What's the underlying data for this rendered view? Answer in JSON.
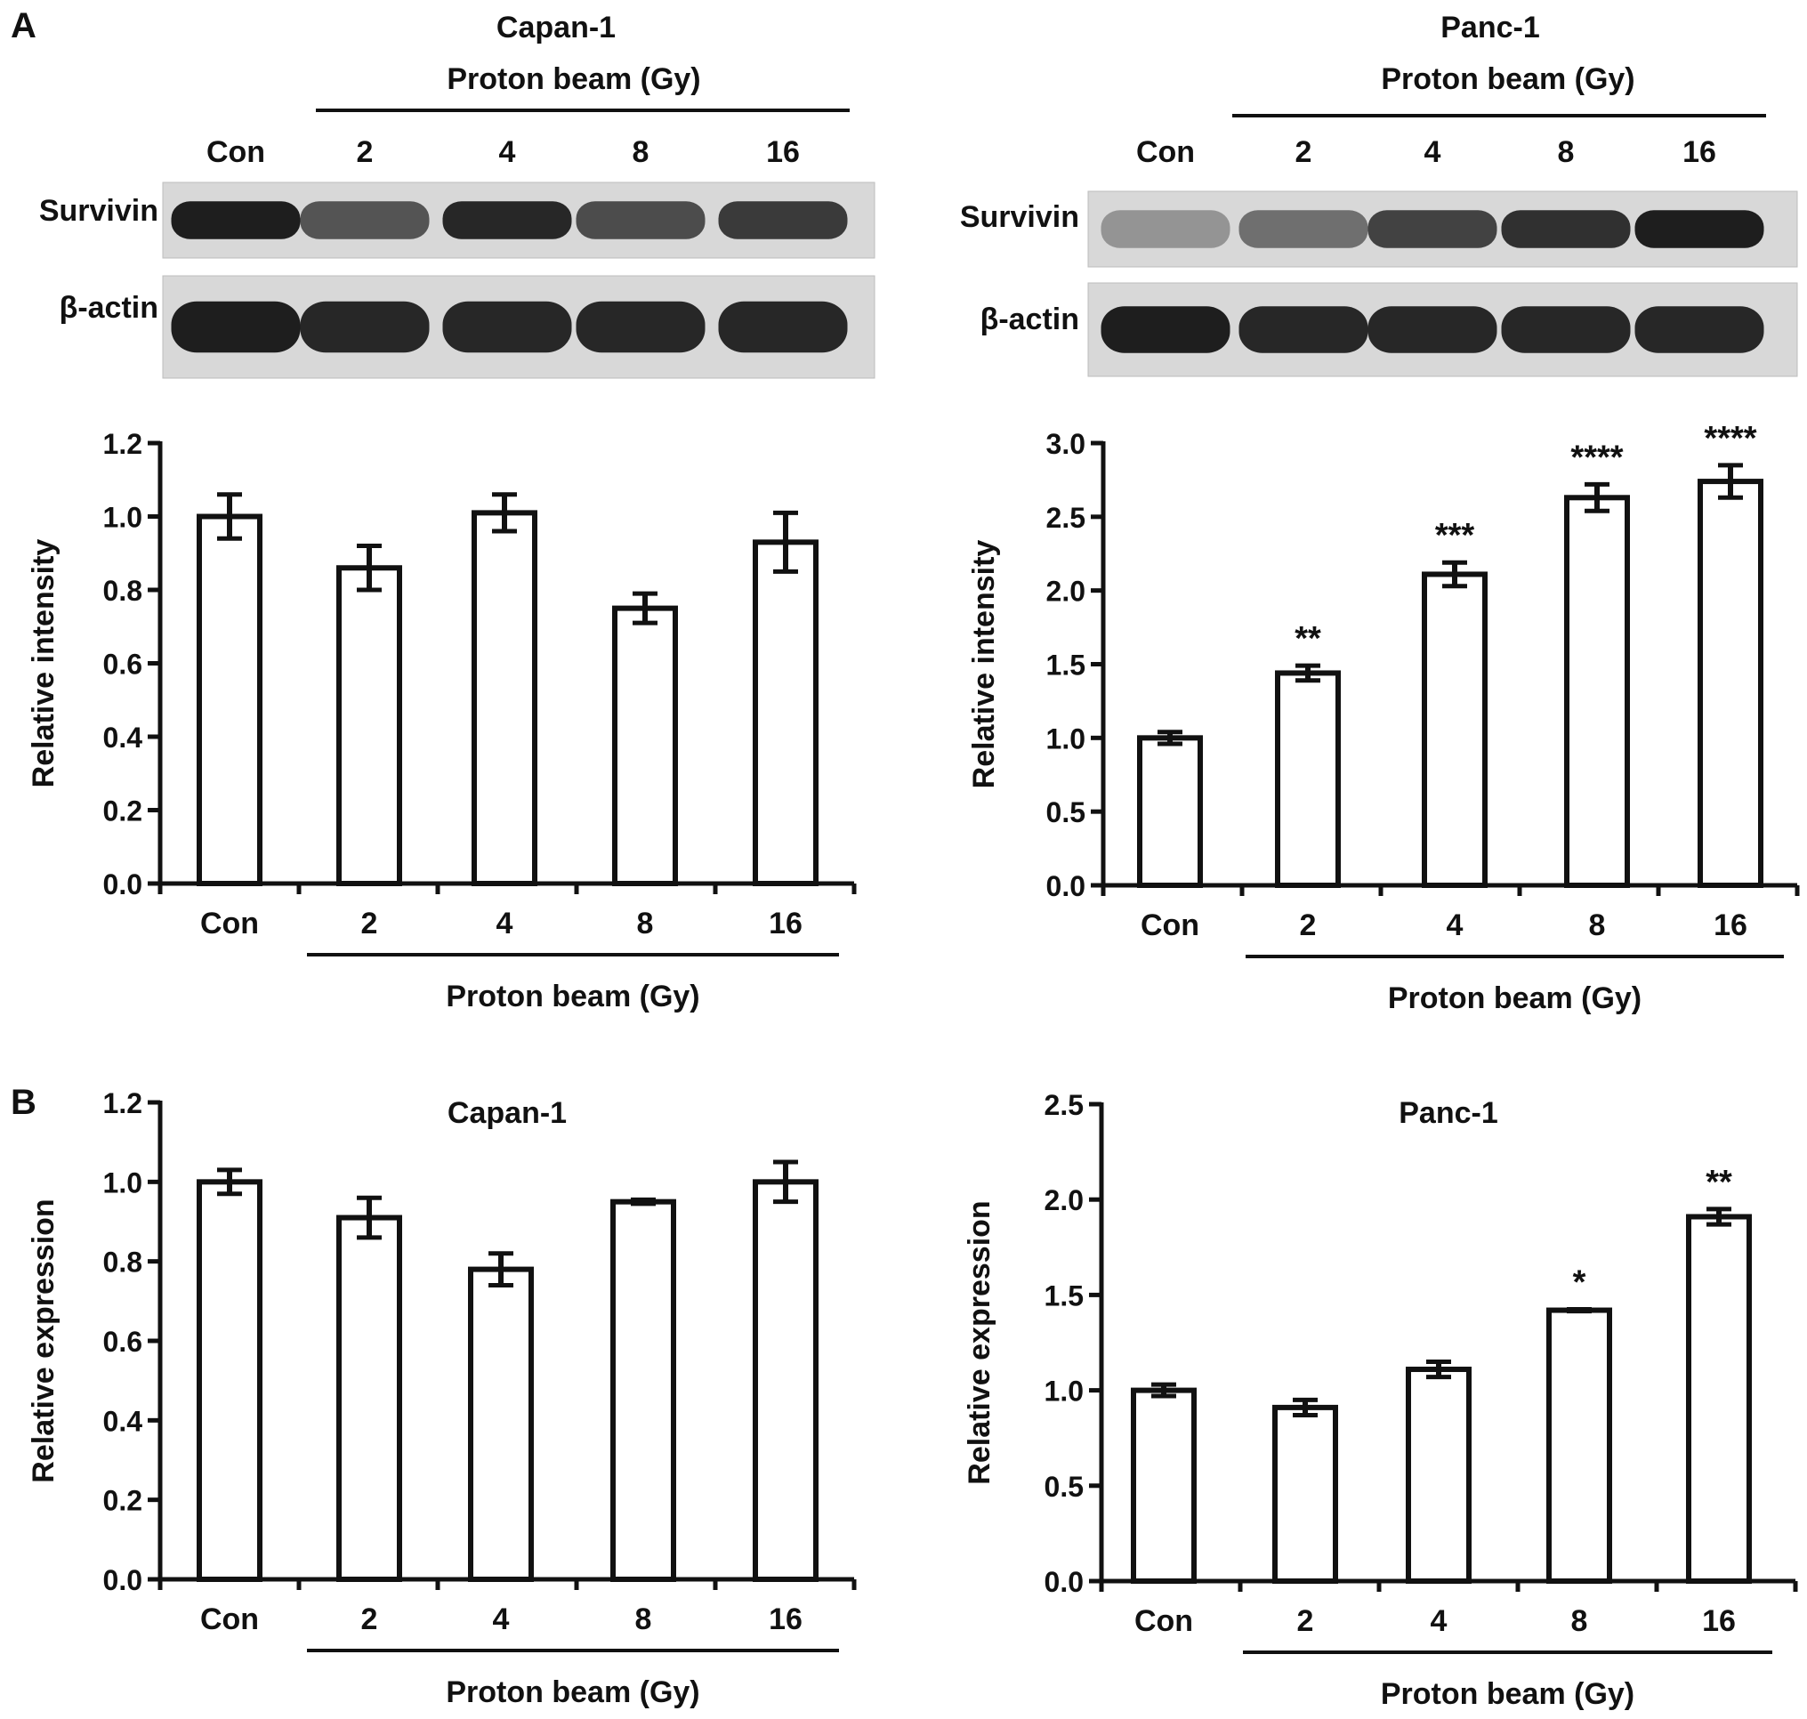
{
  "panels": {
    "A": {
      "label": "A"
    },
    "B": {
      "label": "B"
    }
  },
  "blots": [
    {
      "id": "capan-blot",
      "title": "Capan-1",
      "subtitle": "Proton beam (Gy)",
      "lanes": [
        "Con",
        "2",
        "4",
        "8",
        "16"
      ],
      "rows": [
        {
          "label": "Survivin",
          "intensity": [
            1.0,
            0.7,
            0.95,
            0.75,
            0.85
          ]
        },
        {
          "label": "β-actin",
          "intensity": [
            1.0,
            0.95,
            0.95,
            0.95,
            0.95
          ]
        }
      ]
    },
    {
      "id": "panc-blot",
      "title": "Panc-1",
      "subtitle": "Proton beam (Gy)",
      "lanes": [
        "Con",
        "2",
        "4",
        "8",
        "16"
      ],
      "rows": [
        {
          "label": "Survivin",
          "intensity": [
            0.35,
            0.55,
            0.8,
            0.9,
            1.0
          ]
        },
        {
          "label": "β-actin",
          "intensity": [
            1.0,
            0.95,
            0.95,
            0.95,
            0.95
          ]
        }
      ]
    }
  ],
  "chart_data": [
    {
      "type": "bar",
      "panel": "A",
      "title": "",
      "categories": [
        "Con",
        "2",
        "4",
        "8",
        "16"
      ],
      "values": [
        1.0,
        0.86,
        1.01,
        0.75,
        0.93
      ],
      "errors": [
        0.06,
        0.06,
        0.05,
        0.04,
        0.08
      ],
      "annotations": [
        "",
        "",
        "",
        "",
        ""
      ],
      "xlabel": "Proton beam (Gy)",
      "ylabel": "Relative intensity",
      "ylim": [
        0,
        1.2
      ],
      "yticks": [
        "0.0",
        "0.2",
        "0.4",
        "0.6",
        "0.8",
        "1.0",
        "1.2"
      ],
      "grid": false
    },
    {
      "type": "bar",
      "panel": "A",
      "title": "",
      "categories": [
        "Con",
        "2",
        "4",
        "8",
        "16"
      ],
      "values": [
        1.0,
        1.44,
        2.11,
        2.63,
        2.74
      ],
      "errors": [
        0.04,
        0.05,
        0.08,
        0.09,
        0.11
      ],
      "annotations": [
        "",
        "**",
        "***",
        "****",
        "****"
      ],
      "xlabel": "Proton beam (Gy)",
      "ylabel": "Relative intensity",
      "ylim": [
        0,
        3.0
      ],
      "yticks": [
        "0.0",
        "0.5",
        "1.0",
        "1.5",
        "2.0",
        "2.5",
        "3.0"
      ],
      "grid": false
    },
    {
      "type": "bar",
      "panel": "B",
      "title": "Capan-1",
      "categories": [
        "Con",
        "2",
        "4",
        "8",
        "16"
      ],
      "values": [
        1.0,
        0.91,
        0.78,
        0.95,
        1.0
      ],
      "errors": [
        0.03,
        0.05,
        0.04,
        0.005,
        0.05
      ],
      "annotations": [
        "",
        "",
        "",
        "",
        ""
      ],
      "xlabel": "Proton beam (Gy)",
      "ylabel": "Relative expression",
      "ylim": [
        0,
        1.2
      ],
      "yticks": [
        "0.0",
        "0.2",
        "0.4",
        "0.6",
        "0.8",
        "1.0",
        "1.2"
      ],
      "grid": false
    },
    {
      "type": "bar",
      "panel": "B",
      "title": "Panc-1",
      "categories": [
        "Con",
        "2",
        "4",
        "8",
        "16"
      ],
      "values": [
        1.0,
        0.91,
        1.11,
        1.42,
        1.91
      ],
      "errors": [
        0.03,
        0.04,
        0.04,
        0.005,
        0.04
      ],
      "annotations": [
        "",
        "",
        "",
        "*",
        "**"
      ],
      "xlabel": "Proton beam (Gy)",
      "ylabel": "Relative expression",
      "ylim": [
        0,
        2.5
      ],
      "yticks": [
        "0.0",
        "0.5",
        "1.0",
        "1.5",
        "2.0",
        "2.5"
      ],
      "grid": false
    }
  ]
}
